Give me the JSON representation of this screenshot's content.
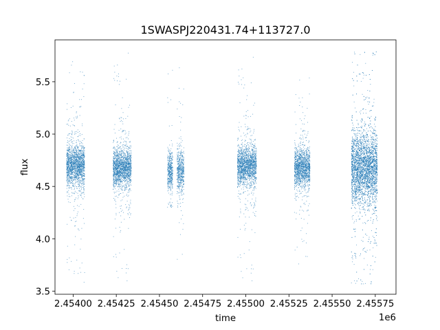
{
  "chart_data": {
    "type": "scatter",
    "title": "1SWASPJ220431.74+113727.0",
    "xlabel": "time",
    "ylabel": "flux",
    "x_offset_label": "1e6",
    "xlim": [
      2453895,
      2455870
    ],
    "ylim": [
      3.47,
      5.9
    ],
    "x_ticks": [
      2454000,
      2454250,
      2454500,
      2454750,
      2455000,
      2455250,
      2455500,
      2455750
    ],
    "x_tick_labels": [
      "2.45400",
      "2.45425",
      "2.45450",
      "2.45475",
      "2.45500",
      "2.45525",
      "2.45550",
      "2.45575"
    ],
    "y_ticks": [
      3.5,
      4.0,
      4.5,
      5.0,
      5.5
    ],
    "y_tick_labels": [
      "3.5",
      "4.0",
      "4.5",
      "5.0",
      "5.5"
    ],
    "grid": false,
    "marker_color": "#1f77b4",
    "series": [
      {
        "clusters": [
          {
            "x_range": [
              2453960,
              2454065
            ],
            "center": 4.7,
            "spread": 0.1,
            "ymin": 3.57,
            "ymax": 5.73,
            "count": 1800
          },
          {
            "x_range": [
              2454230,
              2454335
            ],
            "center": 4.68,
            "spread": 0.09,
            "ymin": 3.58,
            "ymax": 5.8,
            "count": 1800
          },
          {
            "x_range": [
              2454545,
              2454575
            ],
            "center": 4.65,
            "spread": 0.09,
            "ymin": 4.3,
            "ymax": 5.62,
            "count": 450
          },
          {
            "x_range": [
              2454600,
              2454640
            ],
            "center": 4.65,
            "spread": 0.1,
            "ymin": 3.61,
            "ymax": 5.67,
            "count": 550
          },
          {
            "x_range": [
              2454950,
              2455060
            ],
            "center": 4.7,
            "spread": 0.09,
            "ymin": 3.58,
            "ymax": 5.76,
            "count": 1800
          },
          {
            "x_range": [
              2455280,
              2455370
            ],
            "center": 4.68,
            "spread": 0.09,
            "ymin": 3.72,
            "ymax": 5.55,
            "count": 1500
          },
          {
            "x_range": [
              2455610,
              2455760
            ],
            "center": 4.68,
            "spread": 0.17,
            "ymin": 3.57,
            "ymax": 5.8,
            "count": 4000
          }
        ]
      }
    ]
  }
}
